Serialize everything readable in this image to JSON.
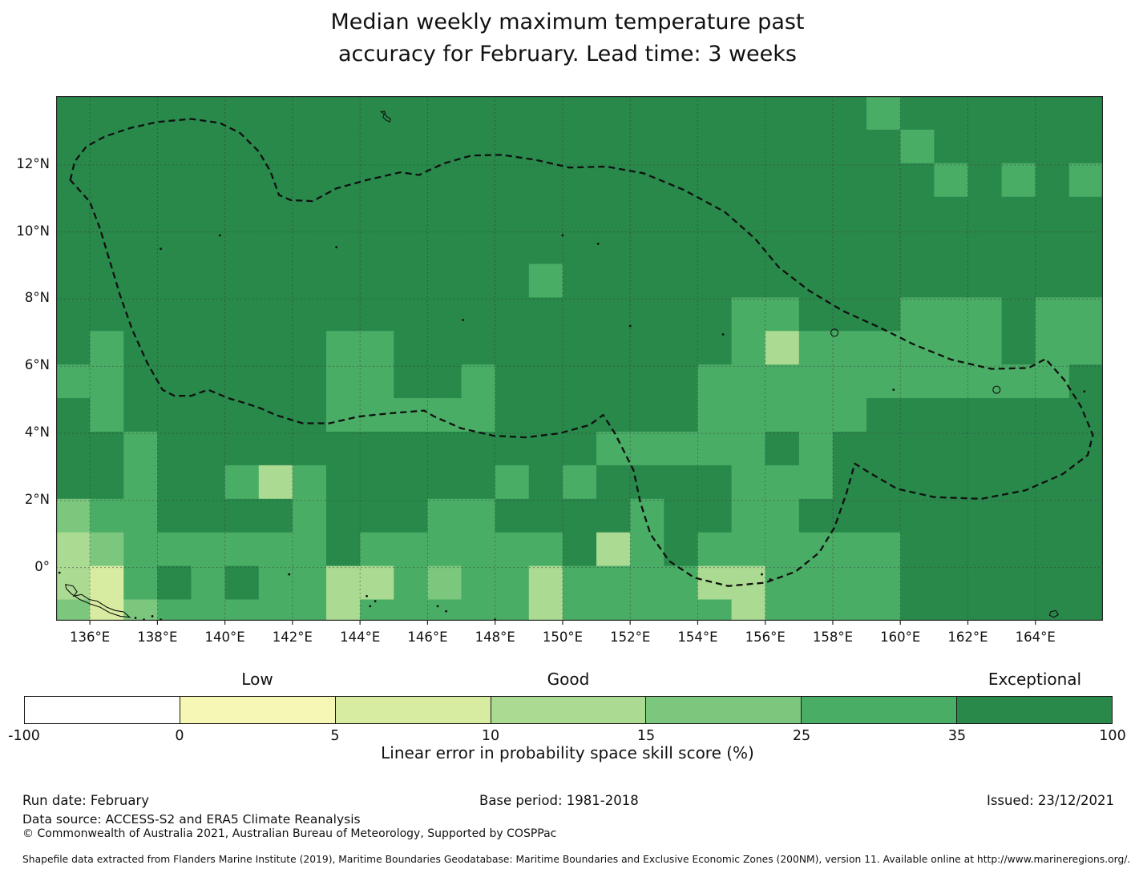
{
  "title": {
    "line1": "Median weekly maximum temperature past",
    "line2": "accuracy for February. Lead time: 3 weeks"
  },
  "map": {
    "lat_labels": [
      {
        "text": "12°N",
        "lat": 12
      },
      {
        "text": "10°N",
        "lat": 10
      },
      {
        "text": "8°N",
        "lat": 8
      },
      {
        "text": "6°N",
        "lat": 6
      },
      {
        "text": "4°N",
        "lat": 4
      },
      {
        "text": "2°N",
        "lat": 2
      },
      {
        "text": "0°",
        "lat": 0
      }
    ],
    "lon_labels": [
      {
        "text": "136°E",
        "lon": 136
      },
      {
        "text": "138°E",
        "lon": 138
      },
      {
        "text": "140°E",
        "lon": 140
      },
      {
        "text": "142°E",
        "lon": 142
      },
      {
        "text": "144°E",
        "lon": 144
      },
      {
        "text": "146°E",
        "lon": 146
      },
      {
        "text": "148°E",
        "lon": 148
      },
      {
        "text": "150°E",
        "lon": 150
      },
      {
        "text": "152°E",
        "lon": 152
      },
      {
        "text": "154°E",
        "lon": 154
      },
      {
        "text": "156°E",
        "lon": 156
      },
      {
        "text": "158°E",
        "lon": 158
      },
      {
        "text": "160°E",
        "lon": 160
      },
      {
        "text": "162°E",
        "lon": 162
      },
      {
        "text": "164°E",
        "lon": 164
      }
    ],
    "palette": {
      "0": "#ffffff",
      "1": "#f6f6b5",
      "2": "#d7eca1",
      "3": "#abda92",
      "4": "#7bc77e",
      "5": "#4aad65",
      "6": "#28894b"
    },
    "grid_rows": [
      "6666666666666666666666665666666",
      "6666666666666666666666666566666",
      "6666666666666666666666666656565",
      "6666666666666666666666666666666",
      "6666666666666666666666666666666",
      "6666666666666656666666666666666",
      "6666666666666666666655666555655",
      "6566666655666666666653555555655",
      "5566666655665666666555555555556",
      "6566666655555666666555556666666",
      "6656666666666666555556566666666",
      "6656653566666565666655566666666",
      "4556666566655666656655666666666",
      "3455555565555556356555555666666",
      "3256565533545535555335555666666",
      "4245555535555535555535555666666"
    ],
    "eez_boundary": [
      [
        135.42,
        11.55
      ],
      [
        135.55,
        12.1
      ],
      [
        135.9,
        12.55
      ],
      [
        136.45,
        12.85
      ],
      [
        137.2,
        13.1
      ],
      [
        138.0,
        13.28
      ],
      [
        139.0,
        13.37
      ],
      [
        139.85,
        13.25
      ],
      [
        140.45,
        12.95
      ],
      [
        141.0,
        12.4
      ],
      [
        141.35,
        11.8
      ],
      [
        141.6,
        11.1
      ],
      [
        141.95,
        10.95
      ],
      [
        142.6,
        10.92
      ],
      [
        143.3,
        11.3
      ],
      [
        144.2,
        11.55
      ],
      [
        145.2,
        11.78
      ],
      [
        145.75,
        11.7
      ],
      [
        145.95,
        11.8
      ],
      [
        146.5,
        12.05
      ],
      [
        147.3,
        12.28
      ],
      [
        148.2,
        12.3
      ],
      [
        149.2,
        12.15
      ],
      [
        150.2,
        11.92
      ],
      [
        151.3,
        11.95
      ],
      [
        152.4,
        11.75
      ],
      [
        153.6,
        11.25
      ],
      [
        154.8,
        10.6
      ],
      [
        155.7,
        9.8
      ],
      [
        156.4,
        8.95
      ],
      [
        157.3,
        8.25
      ],
      [
        158.3,
        7.65
      ],
      [
        159.4,
        7.15
      ],
      [
        160.4,
        6.65
      ],
      [
        161.5,
        6.2
      ],
      [
        162.7,
        5.92
      ],
      [
        163.8,
        5.95
      ],
      [
        164.3,
        6.22
      ],
      [
        164.85,
        5.6
      ],
      [
        165.35,
        4.8
      ],
      [
        165.7,
        3.95
      ],
      [
        165.55,
        3.35
      ],
      [
        164.8,
        2.78
      ],
      [
        163.7,
        2.3
      ],
      [
        162.4,
        2.05
      ],
      [
        161.0,
        2.1
      ],
      [
        159.9,
        2.35
      ],
      [
        159.05,
        2.85
      ],
      [
        158.65,
        3.1
      ],
      [
        158.4,
        2.2
      ],
      [
        158.05,
        1.2
      ],
      [
        157.6,
        0.45
      ],
      [
        156.9,
        -0.12
      ],
      [
        156.0,
        -0.45
      ],
      [
        154.9,
        -0.55
      ],
      [
        153.9,
        -0.3
      ],
      [
        153.15,
        0.2
      ],
      [
        152.6,
        1.0
      ],
      [
        152.3,
        1.95
      ],
      [
        152.1,
        2.9
      ],
      [
        151.55,
        4.0
      ],
      [
        151.2,
        4.55
      ],
      [
        150.8,
        4.25
      ],
      [
        149.9,
        4.0
      ],
      [
        148.9,
        3.88
      ],
      [
        147.95,
        3.93
      ],
      [
        147.0,
        4.15
      ],
      [
        146.2,
        4.5
      ],
      [
        145.9,
        4.68
      ],
      [
        144.9,
        4.6
      ],
      [
        143.95,
        4.5
      ],
      [
        143.1,
        4.3
      ],
      [
        142.3,
        4.3
      ],
      [
        141.5,
        4.55
      ],
      [
        141.05,
        4.75
      ],
      [
        140.6,
        4.9
      ],
      [
        140.1,
        5.05
      ],
      [
        139.5,
        5.3
      ],
      [
        139.0,
        5.12
      ],
      [
        138.5,
        5.12
      ],
      [
        138.15,
        5.3
      ],
      [
        137.7,
        6.1
      ],
      [
        137.25,
        7.1
      ],
      [
        136.9,
        8.1
      ],
      [
        136.6,
        9.1
      ],
      [
        136.3,
        10.1
      ],
      [
        136.0,
        10.9
      ],
      [
        135.42,
        11.55
      ]
    ],
    "islands": [
      [
        [
          135.28,
          -0.5
        ],
        [
          135.5,
          -0.55
        ],
        [
          135.62,
          -0.72
        ],
        [
          135.52,
          -0.85
        ],
        [
          135.75,
          -0.8
        ],
        [
          135.98,
          -0.95
        ],
        [
          136.22,
          -1.0
        ],
        [
          136.5,
          -1.18
        ],
        [
          136.75,
          -1.28
        ],
        [
          137.0,
          -1.32
        ],
        [
          137.18,
          -1.48
        ],
        [
          136.9,
          -1.45
        ],
        [
          136.6,
          -1.35
        ],
        [
          136.3,
          -1.18
        ],
        [
          136.0,
          -1.08
        ],
        [
          135.7,
          -0.95
        ],
        [
          135.45,
          -0.78
        ],
        [
          135.3,
          -0.62
        ]
      ],
      [
        [
          144.62,
          13.58
        ],
        [
          144.72,
          13.52
        ],
        [
          144.68,
          13.42
        ],
        [
          144.78,
          13.33
        ],
        [
          144.88,
          13.28
        ],
        [
          144.9,
          13.38
        ],
        [
          144.78,
          13.45
        ],
        [
          144.72,
          13.6
        ]
      ],
      [
        [
          164.45,
          -1.32
        ],
        [
          164.6,
          -1.28
        ],
        [
          164.68,
          -1.4
        ],
        [
          164.55,
          -1.48
        ],
        [
          164.42,
          -1.42
        ]
      ]
    ],
    "rings": [
      [
        158.05,
        7.0
      ],
      [
        162.85,
        5.3
      ]
    ],
    "specks": [
      [
        138.1,
        9.5
      ],
      [
        139.85,
        9.9
      ],
      [
        143.3,
        9.55
      ],
      [
        147.05,
        7.38
      ],
      [
        150.0,
        9.9
      ],
      [
        151.05,
        9.65
      ],
      [
        154.75,
        6.95
      ],
      [
        159.8,
        5.3
      ],
      [
        165.45,
        5.25
      ],
      [
        144.2,
        -0.85
      ],
      [
        144.45,
        -1.0
      ],
      [
        144.3,
        -1.15
      ],
      [
        146.3,
        -1.15
      ],
      [
        146.55,
        -1.3
      ],
      [
        137.35,
        -1.5
      ],
      [
        137.6,
        -1.55
      ],
      [
        137.85,
        -1.45
      ],
      [
        138.1,
        -1.55
      ],
      [
        155.9,
        -0.2
      ],
      [
        156.15,
        -0.35
      ],
      [
        141.9,
        -0.2
      ],
      [
        148.0,
        -1.55
      ],
      [
        152.0,
        7.2
      ],
      [
        135.1,
        -0.15
      ]
    ]
  },
  "colorbar": {
    "segments": [
      "#ffffff",
      "#f6f6b5",
      "#d7eca1",
      "#abda92",
      "#7bc77e",
      "#4aad65",
      "#28894b"
    ],
    "ticks": [
      "-100",
      "0",
      "5",
      "10",
      "15",
      "25",
      "35",
      "100"
    ],
    "categories": [
      {
        "label": "Low",
        "segment": 1
      },
      {
        "label": "Good",
        "segment": 3
      },
      {
        "label": "Exceptional",
        "segment": 6
      }
    ],
    "title": "Linear error in probability space skill score (%)"
  },
  "footer": {
    "run_date": "Run date: February",
    "base_period": "Base period: 1981-2018",
    "issued": "Issued: 23/12/2021",
    "data_source": "Data source: ACCESS-S2 and ERA5 Climate Reanalysis",
    "copyright": "© Commonwealth of Australia 2021, Australian Bureau of Meteorology, Supported by COSPPac",
    "shapefile": "Shapefile data extracted from Flanders Marine Institute (2019), Maritime Boundaries Geodatabase: Maritime Boundaries and Exclusive Economic Zones (200NM), version 11. Available online at http://www.marineregions.org/."
  },
  "chart_data": {
    "type": "heatmap",
    "title": "Median weekly maximum temperature past accuracy for February. Lead time: 3 weeks",
    "x_range_deg_east": [
      135,
      166
    ],
    "y_range_deg_north": [
      -1.6,
      14.05
    ],
    "cell_size_deg": 1,
    "value_bins": {
      "0": "-100 to 0",
      "1": "0-5",
      "2": "5-10",
      "3": "10-15",
      "4": "15-25",
      "5": "25-35",
      "6": "35-100"
    },
    "bin_labels": {
      "0-5": "Low",
      "10-15": "Good",
      "35-100": "Exceptional"
    },
    "colorbar_ticks": [
      -100,
      0,
      5,
      10,
      15,
      25,
      35,
      100
    ],
    "colorbar_label": "Linear error in probability space skill score (%)",
    "grid_rows_top_to_bottom": "see map.grid_rows; digits index value_bins, row 0 = 14N..13N, col 0 = 135E..136E",
    "graticule_interval_deg": 2,
    "overlay": "dashed EEZ maritime boundary polygon, island coastlines"
  }
}
